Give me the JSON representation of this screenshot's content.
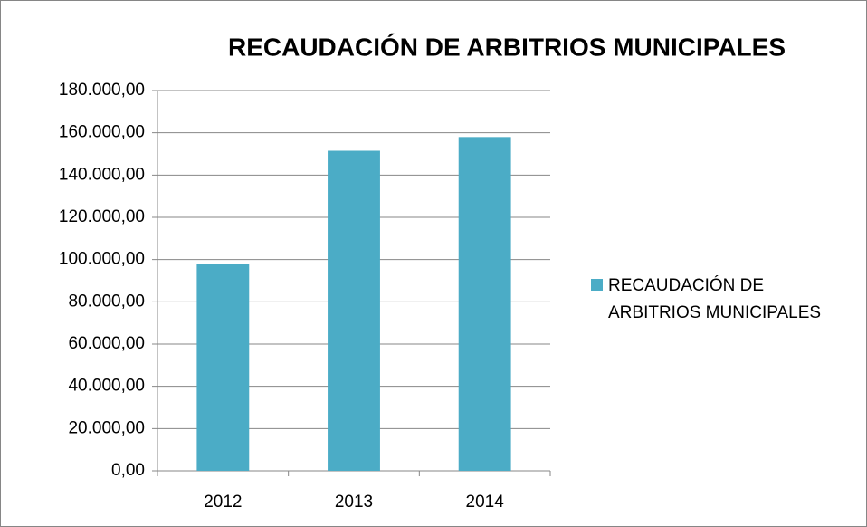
{
  "chart_data": {
    "type": "bar",
    "title": "RECAUDACIÓN DE ARBITRIOS MUNICIPALES",
    "categories": [
      "2012",
      "2013",
      "2014"
    ],
    "series": [
      {
        "name": "RECAUDACIÓN DE ARBITRIOS MUNICIPALES",
        "color": "#4bacc6",
        "values": [
          98000,
          151500,
          158000
        ]
      }
    ],
    "ylim": [
      0,
      180000
    ],
    "yticks": [
      {
        "value": 0,
        "label": "0,00"
      },
      {
        "value": 20000,
        "label": "20.000,00"
      },
      {
        "value": 40000,
        "label": "40.000,00"
      },
      {
        "value": 60000,
        "label": "60.000,00"
      },
      {
        "value": 80000,
        "label": "80.000,00"
      },
      {
        "value": 100000,
        "label": "100.000,00"
      },
      {
        "value": 120000,
        "label": "120.000,00"
      },
      {
        "value": 140000,
        "label": "140.000,00"
      },
      {
        "value": 160000,
        "label": "160.000,00"
      },
      {
        "value": 180000,
        "label": "180.000,00"
      }
    ],
    "grid": true,
    "legend": "right"
  }
}
